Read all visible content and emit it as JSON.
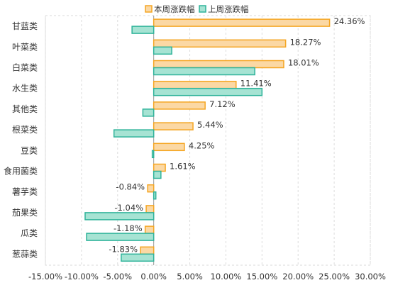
{
  "chart_data": {
    "type": "bar",
    "orientation": "horizontal",
    "categories": [
      "甘蓝类",
      "叶菜类",
      "白菜类",
      "水生类",
      "其他类",
      "根菜类",
      "豆类",
      "食用菌类",
      "薯芋类",
      "茄果类",
      "瓜类",
      "葱蒜类"
    ],
    "series": [
      {
        "name": "本周涨跌幅",
        "color": "#F5A623",
        "fill": "#FBD8A4",
        "values": [
          24.36,
          18.27,
          18.01,
          11.41,
          7.12,
          5.44,
          4.25,
          1.61,
          -0.84,
          -1.04,
          -1.18,
          -1.83
        ],
        "labels": [
          "24.36%",
          "18.27%",
          "18.01%",
          "11.41%",
          "7.12%",
          "5.44%",
          "4.25%",
          "1.61%",
          "-0.84%",
          "-1.04%",
          "-1.18%",
          "-1.83%"
        ]
      },
      {
        "name": "上周涨跌幅",
        "color": "#2FB39A",
        "fill": "#A6E3D3",
        "values": [
          -3.0,
          2.5,
          14.0,
          15.0,
          -1.5,
          -5.5,
          -0.2,
          1.0,
          0.3,
          -9.5,
          -9.3,
          -4.5
        ]
      }
    ],
    "x_ticks": [
      "-15.00%",
      "-10.00%",
      "-5.00%",
      "0.00%",
      "5.00%",
      "10.00%",
      "15.00%",
      "20.00%",
      "25.00%",
      "30.00%"
    ],
    "xlim": [
      -15,
      30
    ],
    "legend_position": "top-center",
    "grid": "dashed vertical"
  }
}
